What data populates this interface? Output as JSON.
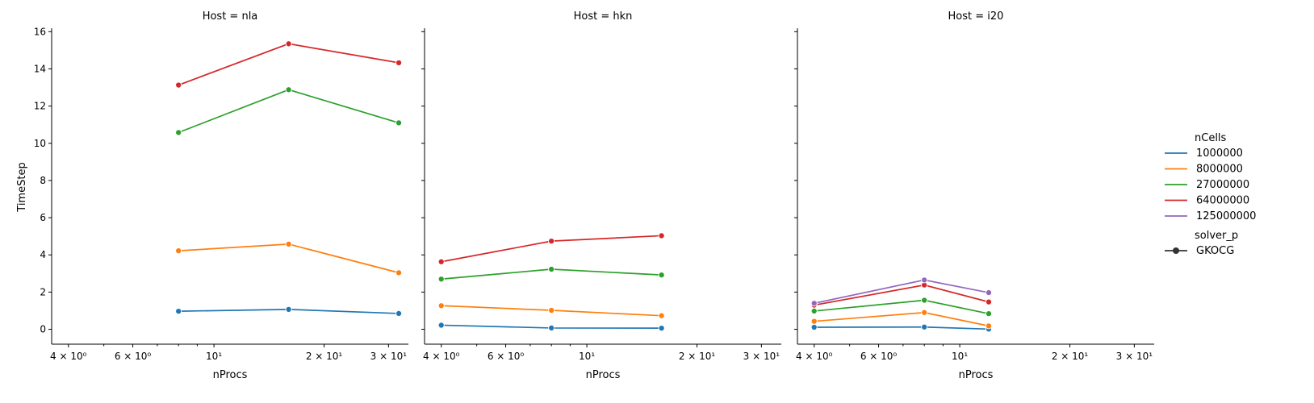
{
  "chart_data": {
    "type": "line",
    "facet_label": "Host",
    "xlabel": "nProcs",
    "ylabel": "TimeStep",
    "xscale": "log",
    "xlim": [
      3.6,
      34
    ],
    "ylim": [
      -0.8,
      16.1
    ],
    "yticks": [
      0,
      2,
      4,
      6,
      8,
      10,
      12,
      14,
      16
    ],
    "xticks": [
      {
        "value": 4,
        "label": "4 × 10⁰"
      },
      {
        "value": 6,
        "label": "6 × 10⁰"
      },
      {
        "value": 10,
        "label": "10¹"
      },
      {
        "value": 20,
        "label": "2 × 10¹"
      },
      {
        "value": 30,
        "label": "3 × 10¹"
      }
    ],
    "legend": {
      "placement": "right",
      "hue_title": "nCells",
      "style_title": "solver_p",
      "style_entries": [
        "GKOCG"
      ]
    },
    "series_colors": {
      "1000000": "#1f77b4",
      "8000000": "#ff7f0e",
      "27000000": "#2ca02c",
      "64000000": "#d62728",
      "125000000": "#9467bd"
    },
    "panels": [
      {
        "title": "Host = nla",
        "series": [
          {
            "name": "1000000",
            "x": [
              8,
              16,
              32
            ],
            "y": [
              0.97,
              1.07,
              0.85
            ]
          },
          {
            "name": "8000000",
            "x": [
              8,
              16,
              32
            ],
            "y": [
              4.22,
              4.58,
              3.04
            ]
          },
          {
            "name": "27000000",
            "x": [
              8,
              16,
              32
            ],
            "y": [
              10.58,
              12.88,
              11.1
            ]
          },
          {
            "name": "64000000",
            "x": [
              8,
              16,
              32
            ],
            "y": [
              13.13,
              15.35,
              14.33
            ]
          }
        ]
      },
      {
        "title": "Host = hkn",
        "series": [
          {
            "name": "1000000",
            "x": [
              4,
              8,
              16
            ],
            "y": [
              0.22,
              0.07,
              0.06
            ]
          },
          {
            "name": "8000000",
            "x": [
              4,
              8,
              16
            ],
            "y": [
              1.27,
              1.02,
              0.73
            ]
          },
          {
            "name": "27000000",
            "x": [
              4,
              8,
              16
            ],
            "y": [
              2.7,
              3.23,
              2.92
            ]
          },
          {
            "name": "64000000",
            "x": [
              4,
              8,
              16
            ],
            "y": [
              3.63,
              4.74,
              5.03
            ]
          }
        ]
      },
      {
        "title": "Host = i20",
        "series": [
          {
            "name": "1000000",
            "x": [
              4,
              8,
              12
            ],
            "y": [
              0.11,
              0.12,
              0.01
            ]
          },
          {
            "name": "8000000",
            "x": [
              4,
              8,
              12
            ],
            "y": [
              0.43,
              0.9,
              0.18
            ]
          },
          {
            "name": "27000000",
            "x": [
              4,
              8,
              12
            ],
            "y": [
              0.98,
              1.56,
              0.84
            ]
          },
          {
            "name": "64000000",
            "x": [
              4,
              8,
              12
            ],
            "y": [
              1.3,
              2.38,
              1.47
            ]
          },
          {
            "name": "125000000",
            "x": [
              4,
              8,
              12
            ],
            "y": [
              1.4,
              2.65,
              1.97
            ]
          }
        ]
      }
    ]
  }
}
